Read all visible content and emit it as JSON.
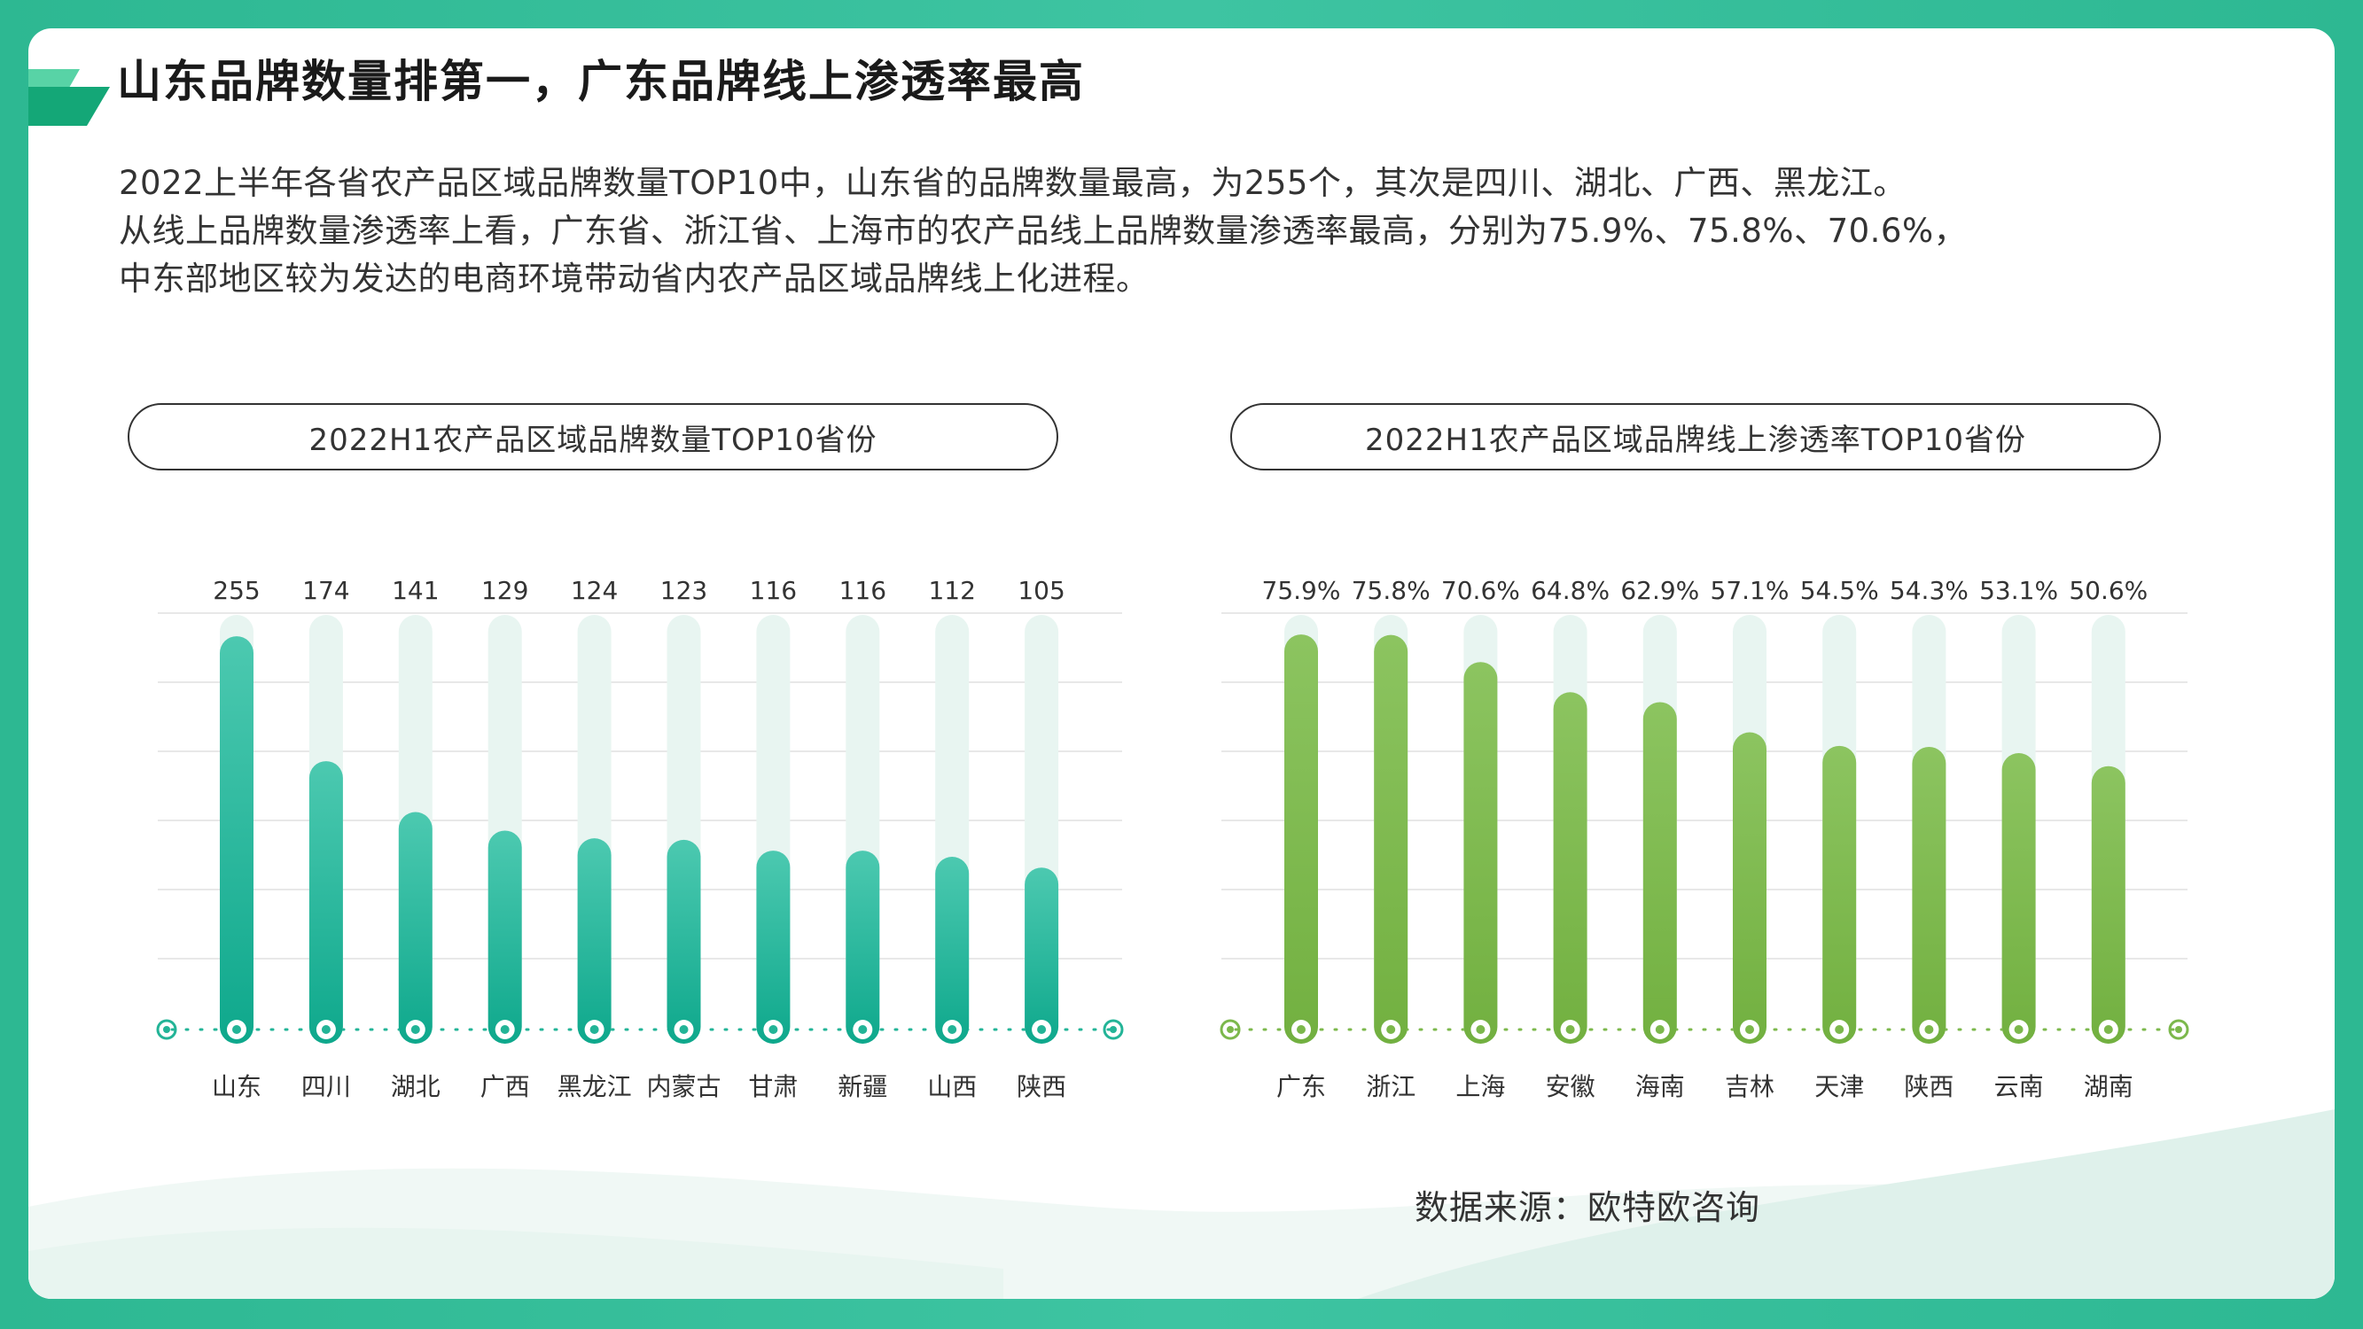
{
  "title": "山东品牌数量排第一，广东品牌线上渗透率最高",
  "description": [
    "2022上半年各省农产品区域品牌数量TOP10中，山东省的品牌数量最高，为255个，其次是四川、湖北、广西、黑龙江。",
    "从线上品牌数量渗透率上看，广东省、浙江省、上海市的农产品线上品牌数量渗透率最高，分别为75.9%、75.8%、70.6%，",
    "中东部地区较为发达的电商环境带动省内农产品区域品牌线上化进程。"
  ],
  "source": "数据来源：欧特欧咨询",
  "colors": {
    "frame": "#2fbd98",
    "teal_bar": "#18b094",
    "green_bar": "#7cb84c",
    "bar_track": "#e8f5f1",
    "grid": "#e8e8e8"
  },
  "chart_data": [
    {
      "type": "bar",
      "title": "2022H1农产品区域品牌数量TOP10省份",
      "categories": [
        "山东",
        "四川",
        "湖北",
        "广西",
        "黑龙江",
        "内蒙古",
        "甘肃",
        "新疆",
        "山西",
        "陕西"
      ],
      "values": [
        255,
        174,
        141,
        129,
        124,
        123,
        116,
        116,
        112,
        105
      ],
      "data_labels": [
        "255",
        "174",
        "141",
        "129",
        "124",
        "123",
        "116",
        "116",
        "112",
        "105"
      ],
      "ylim": [
        0,
        270
      ],
      "grid": true,
      "legend": "none"
    },
    {
      "type": "bar",
      "title": "2022H1农产品区域品牌线上渗透率TOP10省份",
      "categories": [
        "广东",
        "浙江",
        "上海",
        "安徽",
        "海南",
        "吉林",
        "天津",
        "陕西",
        "云南",
        "湖南"
      ],
      "values": [
        75.9,
        75.8,
        70.6,
        64.8,
        62.9,
        57.1,
        54.5,
        54.3,
        53.1,
        50.6
      ],
      "data_labels": [
        "75.9%",
        "75.8%",
        "70.6%",
        "64.8%",
        "62.9%",
        "57.1%",
        "54.5%",
        "54.3%",
        "53.1%",
        "50.6%"
      ],
      "ylim": [
        0,
        80
      ],
      "grid": true,
      "legend": "none"
    }
  ]
}
